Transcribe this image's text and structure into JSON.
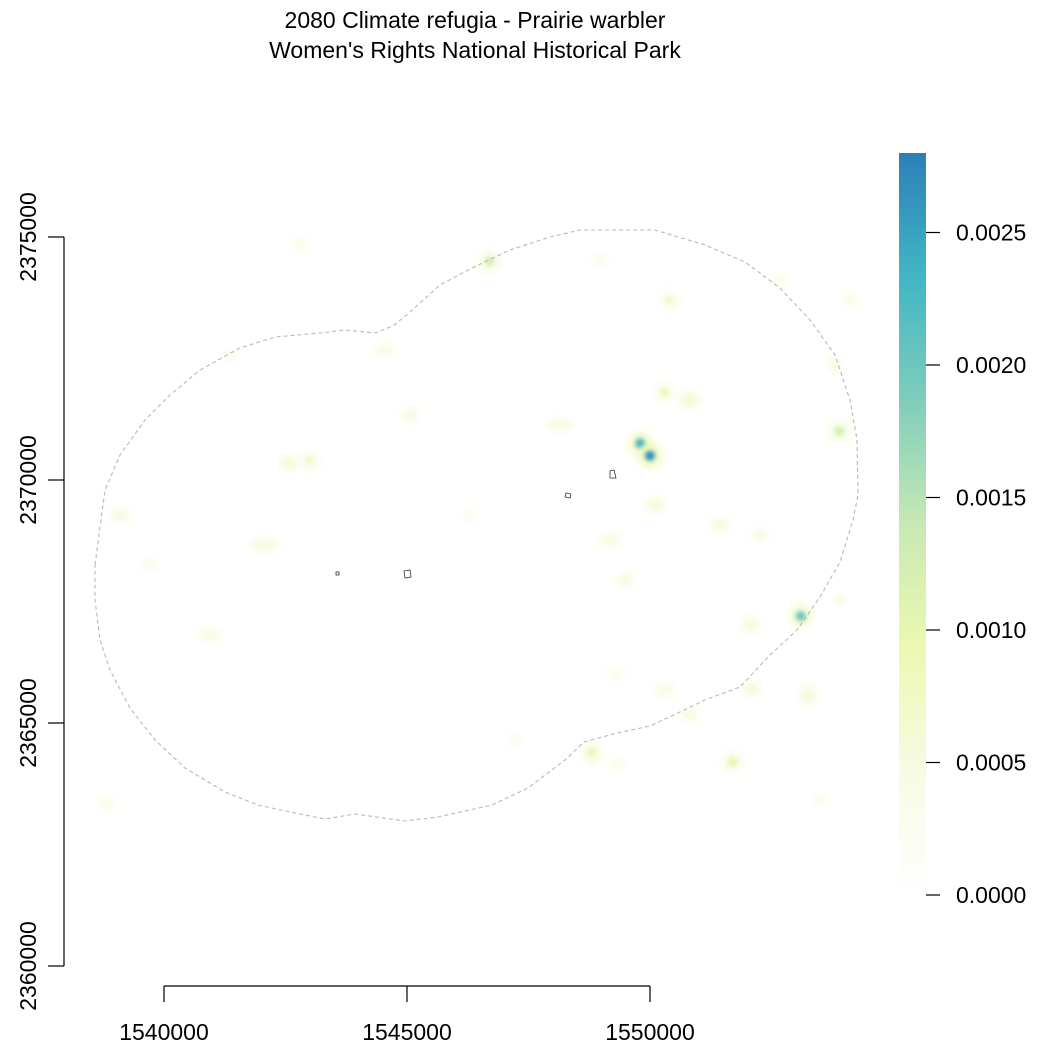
{
  "title": {
    "line1": "2080 Climate refugia - Prairie warbler",
    "line2": "Women's Rights National Historical Park"
  },
  "map": {
    "x_axis": {
      "ticks": [
        1540000,
        1545000,
        1550000
      ],
      "tick_labels": [
        "1540000",
        "1545000",
        "1550000"
      ]
    },
    "y_axis": {
      "ticks": [
        2360000,
        2365000,
        2370000,
        2375000
      ],
      "tick_labels": [
        "2360000",
        "2365000",
        "2370000",
        "2375000"
      ]
    },
    "boundary_style": "dashed grey",
    "park_units_style": "thin black outline",
    "hotspots": [
      {
        "x": 1549800,
        "y": 2370750,
        "value": 0.0024
      },
      {
        "x": 1550000,
        "y": 2370500,
        "value": 0.0027
      },
      {
        "x": 1553100,
        "y": 2367200,
        "value": 0.002
      },
      {
        "x": 1546700,
        "y": 2374500,
        "value": 0.0012
      },
      {
        "x": 1550300,
        "y": 2371800,
        "value": 0.0008
      },
      {
        "x": 1550400,
        "y": 2373700,
        "value": 0.0007
      },
      {
        "x": 1553900,
        "y": 2371000,
        "value": 0.0012
      },
      {
        "x": 1551700,
        "y": 2364200,
        "value": 0.001
      },
      {
        "x": 1548800,
        "y": 2364400,
        "value": 0.0009
      },
      {
        "x": 1543000,
        "y": 2370400,
        "value": 0.0007
      },
      {
        "x": 1552100,
        "y": 2365700,
        "value": 0.0006
      },
      {
        "x": 1549300,
        "y": 2366000,
        "value": 0.0004
      }
    ]
  },
  "legend": {
    "min": 0.0,
    "max": 0.0028,
    "ticks": [
      0.0,
      0.0005,
      0.001,
      0.0015,
      0.002,
      0.0025
    ],
    "tick_labels": [
      "0.0000",
      "0.0005",
      "0.0010",
      "0.0015",
      "0.0020",
      "0.0025"
    ],
    "colors": [
      "#ffffff",
      "#f7fbe3",
      "#edf8b1",
      "#c7e9b4",
      "#7fcdbb",
      "#41b6c4",
      "#2c7fb8"
    ]
  }
}
